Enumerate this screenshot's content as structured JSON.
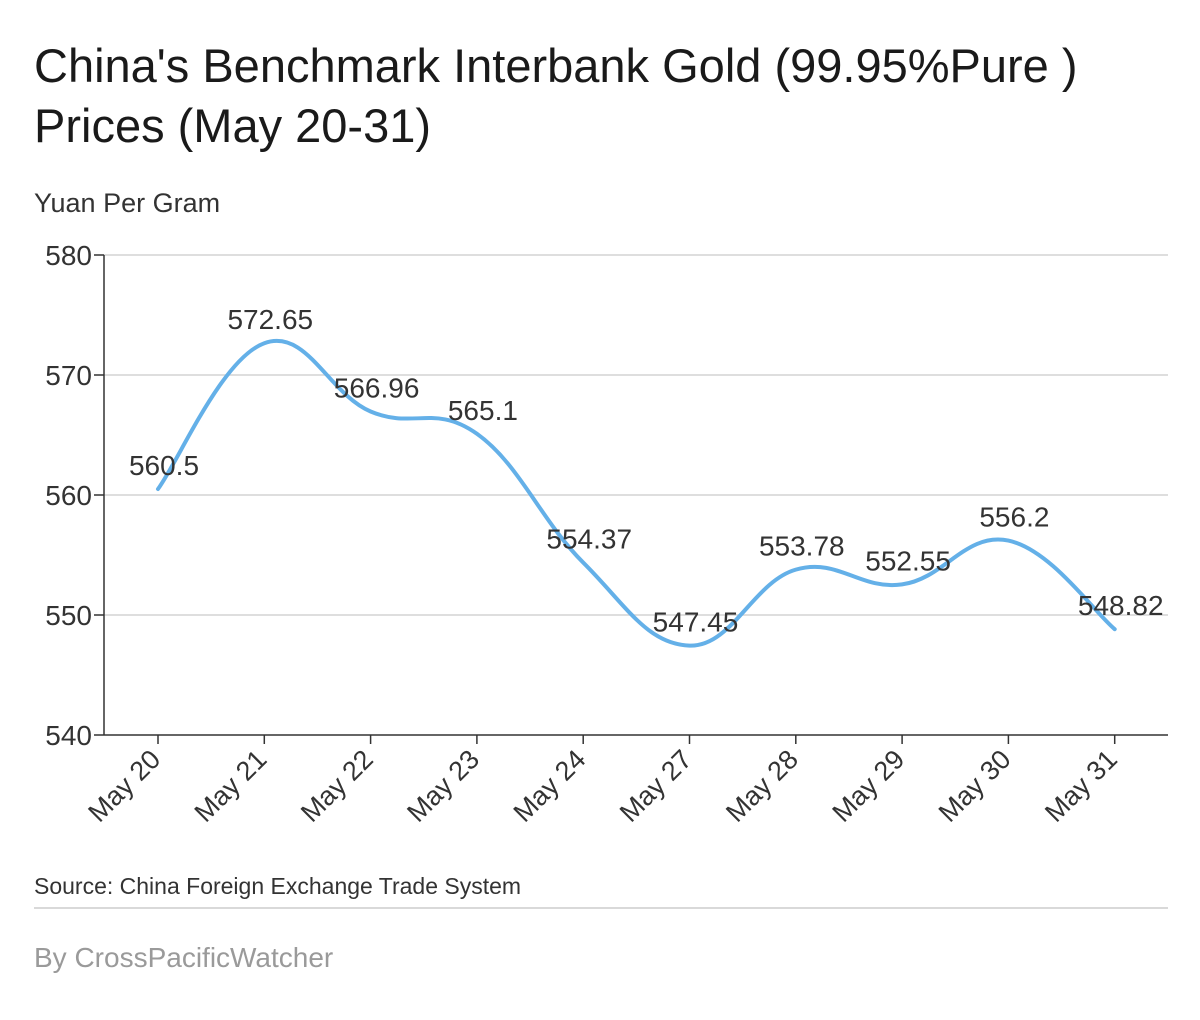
{
  "title": "China's Benchmark Interbank Gold (99.95%Pure ) Prices (May 20-31)",
  "unit_label": "Yuan Per Gram",
  "source": "Source: China Foreign Exchange Trade System",
  "byline": "By CrossPacificWatcher",
  "chart_data": {
    "type": "line",
    "categories": [
      "May 20",
      "May 21",
      "May 22",
      "May 23",
      "May 24",
      "May 27",
      "May 28",
      "May 29",
      "May 30",
      "May 31"
    ],
    "series": [
      {
        "values": [
          560.5,
          572.65,
          566.96,
          565.1,
          554.37,
          547.45,
          553.78,
          552.55,
          556.2,
          548.82
        ]
      }
    ],
    "data_labels": [
      "560.5",
      "572.65",
      "566.96",
      "565.1",
      "554.37",
      "547.45",
      "553.78",
      "552.55",
      "556.2",
      "548.82"
    ],
    "ylim": [
      540,
      580
    ],
    "yticks": [
      540,
      550,
      560,
      570,
      580
    ],
    "xlabel": "",
    "ylabel": "Yuan Per Gram",
    "grid": true,
    "line_color": "#64b0e8"
  }
}
